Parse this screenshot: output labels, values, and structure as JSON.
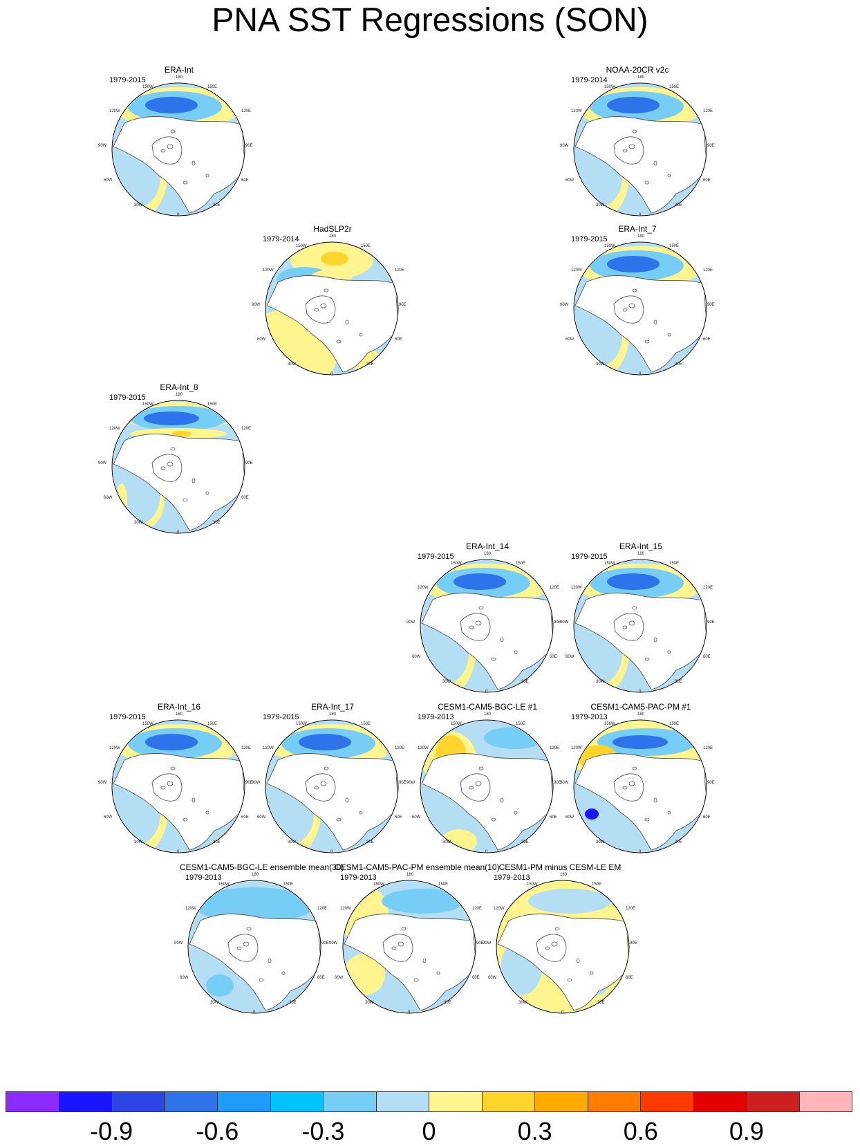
{
  "title": "PNA SST Regressions (SON)",
  "panels": [
    {
      "name": "ERA-Int",
      "years": "1979-2015",
      "style": "obs"
    },
    {
      "name": "NOAA-20CR v2c",
      "years": "1979-2014",
      "style": "obs"
    },
    {
      "name": "HadSLP2r",
      "years": "1979-2014",
      "style": "had"
    },
    {
      "name": "ERA-Int_7",
      "years": "1979-2015",
      "style": "obs"
    },
    {
      "name": "ERA-Int_8",
      "years": "1979-2015",
      "style": "noisy"
    },
    {
      "name": "ERA-Int_14",
      "years": "1979-2015",
      "style": "obs"
    },
    {
      "name": "ERA-Int_15",
      "years": "1979-2015",
      "style": "obs"
    },
    {
      "name": "ERA-Int_16",
      "years": "1979-2015",
      "style": "obs"
    },
    {
      "name": "ERA-Int_17",
      "years": "1979-2015",
      "style": "obs"
    },
    {
      "name": "CESM1-CAM5-BGC-LE #1",
      "years": "1979-2013",
      "style": "bgc"
    },
    {
      "name": "CESM1-CAM5-PAC-PM #1",
      "years": "1979-2013",
      "style": "pac"
    },
    {
      "name": "CESM1-CAM5-BGC-LE ensemble mean(30)",
      "years": "1979-2013",
      "style": "em"
    },
    {
      "name": "CESM1-CAM5-PAC-PM ensemble mean(10)",
      "years": "1979-2013",
      "style": "pacem"
    },
    {
      "name": "CESM1-PM minus CESM-LE EM",
      "years": "1979-2013",
      "style": "diff"
    }
  ],
  "map_labels": {
    "top": "180",
    "upper_left": "150W",
    "upper_right": "150E",
    "left_upper": "120W",
    "right_upper": "120E",
    "left": "90W",
    "right": "90E",
    "left_lower": "60W",
    "right_lower": "60E",
    "lower_left": "30W",
    "lower_right": "30E",
    "bottom": "0"
  },
  "colorbar": {
    "colors": [
      "#8b2bff",
      "#1a14ff",
      "#2c46e6",
      "#2f73eb",
      "#1f9bfb",
      "#00c3ff",
      "#76cdf5",
      "#b4def4",
      "#fff58e",
      "#ffd52b",
      "#ffab00",
      "#ff7c00",
      "#ff3a00",
      "#e50000",
      "#cc1f1f",
      "#ffb5b9"
    ],
    "ticks": [
      "-0.9",
      "-0.6",
      "-0.3",
      "0",
      "0.3",
      "0.6",
      "0.9"
    ]
  }
}
